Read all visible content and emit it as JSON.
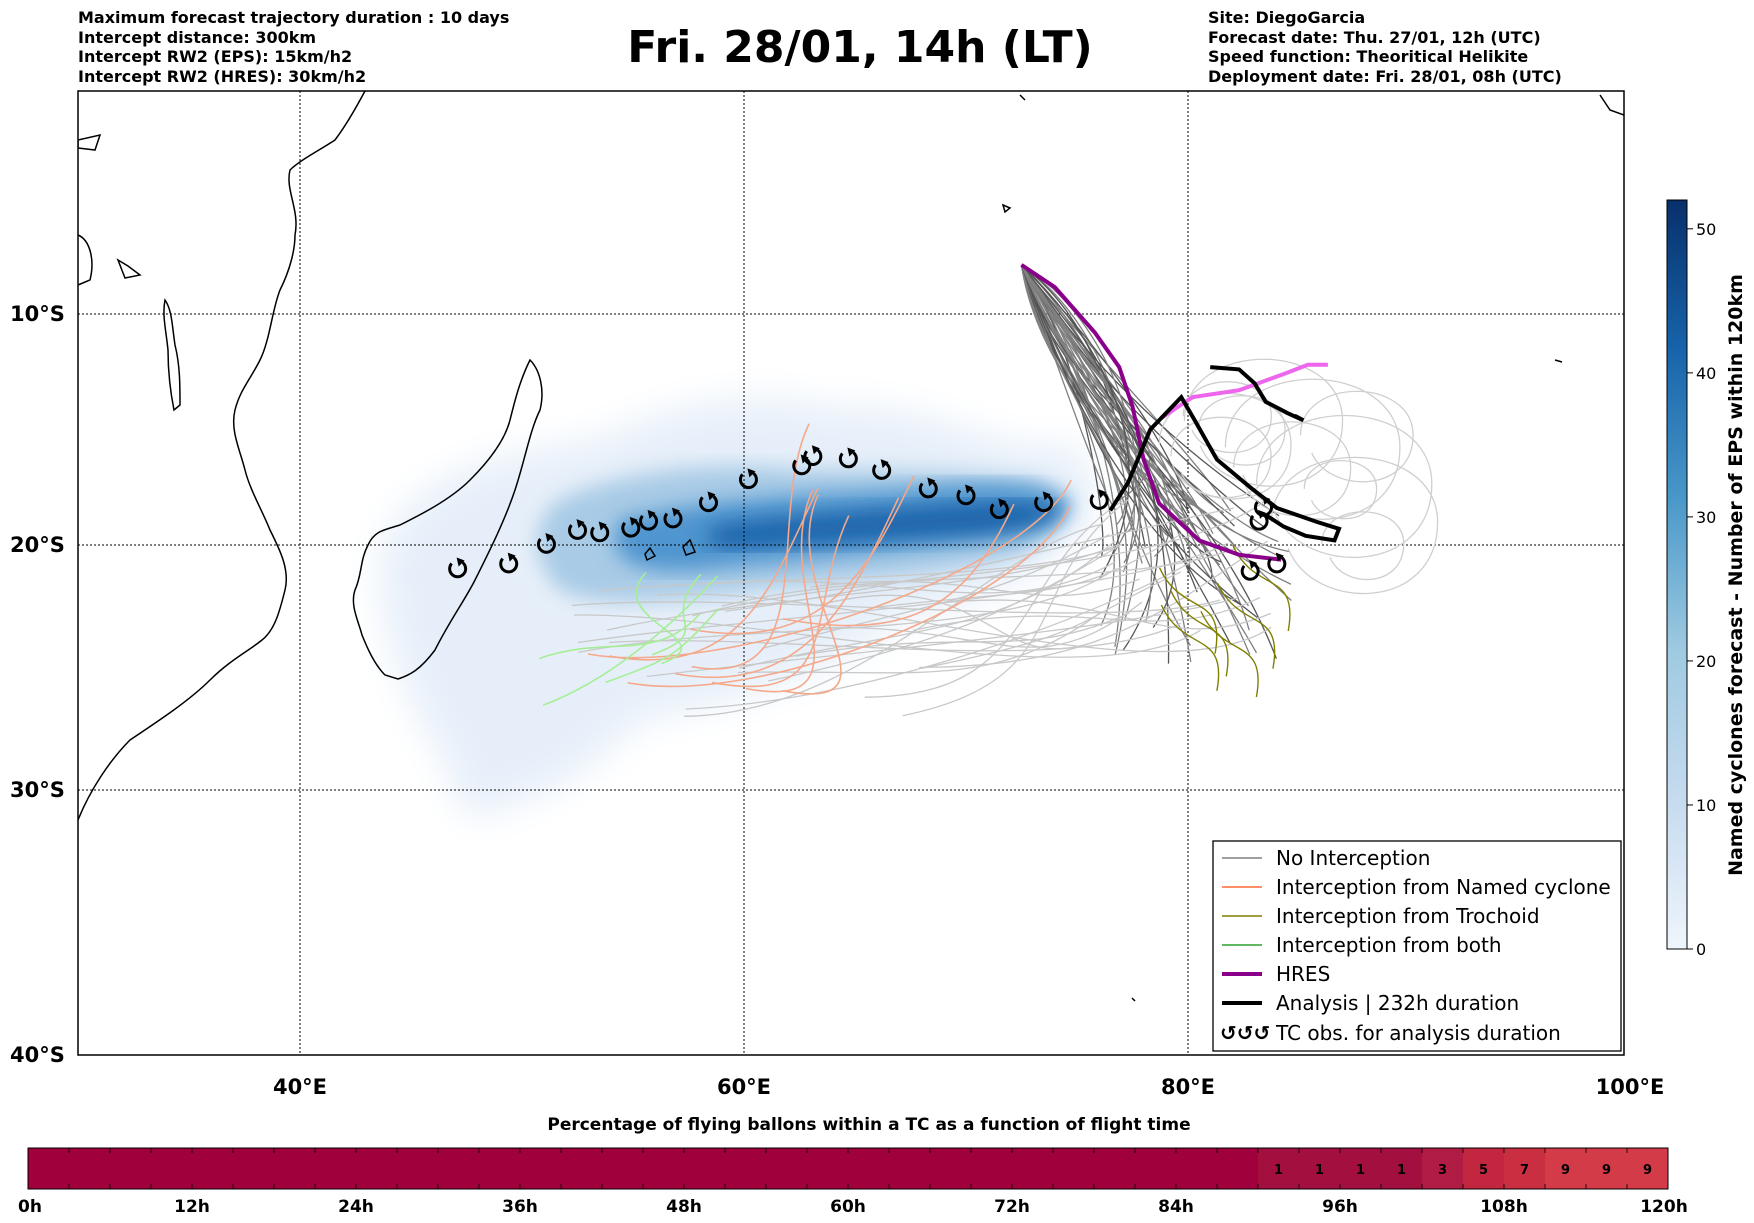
{
  "header": {
    "left": [
      "Maximum forecast trajectory duration : 10 days",
      "Intercept distance: 300km",
      "Intercept RW2 (EPS):  15km/h2",
      "Intercept RW2 (HRES): 30km/h2"
    ],
    "title": "Fri. 28/01, 14h (LT)",
    "right": [
      "Site: DiegoGarcia",
      "Forecast date: Thu. 27/01, 12h (UTC)",
      "Speed function: Theoritical Helikite",
      "Deployment date: Fri. 28/01, 08h (UTC)"
    ]
  },
  "map": {
    "lat_labels": [
      "10°S",
      "20°S",
      "30°S",
      "40°S"
    ],
    "lon_labels": [
      "40°E",
      "60°E",
      "80°E",
      "100°E"
    ],
    "colors": {
      "no_interception": "#808080",
      "named_cyclone": "#ff6a33",
      "trochoid": "#808000",
      "both": "#2ca02c",
      "hres": "#8b008b",
      "analysis": "#000000"
    },
    "legend": [
      {
        "label": "No Interception",
        "style": "line-thin-gray"
      },
      {
        "label": "Interception from Named cyclone",
        "style": "line-thin-orange"
      },
      {
        "label": "Interception from Trochoid",
        "style": "line-thin-olive"
      },
      {
        "label": "Interception from both",
        "style": "line-thin-green"
      },
      {
        "label": "HRES",
        "style": "line-thick-purple"
      },
      {
        "label": "Analysis | 232h duration",
        "style": "line-thick-black"
      },
      {
        "label": "TC obs. for analysis duration",
        "style": "cyclone-symbols",
        "symbol": "↺↺↺"
      }
    ],
    "tc_obs": [
      [
        47.1,
        -21.0
      ],
      [
        49.4,
        -20.8
      ],
      [
        51.1,
        -20.0
      ],
      [
        52.5,
        -19.4
      ],
      [
        53.5,
        -19.5
      ],
      [
        54.9,
        -19.3
      ],
      [
        55.7,
        -19.0
      ],
      [
        56.8,
        -18.9
      ],
      [
        58.4,
        -18.2
      ],
      [
        60.2,
        -17.2
      ],
      [
        62.6,
        -16.6
      ],
      [
        63.1,
        -16.2
      ],
      [
        64.7,
        -16.3
      ],
      [
        66.2,
        -16.8
      ],
      [
        68.3,
        -17.6
      ],
      [
        70.0,
        -17.9
      ],
      [
        71.5,
        -18.5
      ],
      [
        73.5,
        -18.2
      ],
      [
        76.0,
        -18.1
      ],
      [
        83.2,
        -19.0
      ],
      [
        83.4,
        -18.4
      ],
      [
        82.8,
        -21.1
      ],
      [
        84.0,
        -20.8
      ]
    ],
    "analysis_track": [
      [
        81.0,
        -12.3
      ],
      [
        82.3,
        -12.4
      ],
      [
        83.0,
        -13.0
      ],
      [
        83.5,
        -13.8
      ],
      [
        84.5,
        -14.3
      ],
      [
        85.2,
        -14.6
      ],
      [
        84.8,
        -14.4
      ]
    ],
    "analysis_track_2": [
      [
        76.5,
        -18.5
      ],
      [
        77.3,
        -17.3
      ],
      [
        78.3,
        -15.0
      ],
      [
        79.7,
        -13.6
      ],
      [
        80.3,
        -14.6
      ],
      [
        81.3,
        -16.3
      ],
      [
        82.8,
        -17.5
      ],
      [
        84.0,
        -18.4
      ],
      [
        85.8,
        -19.0
      ],
      [
        86.8,
        -19.3
      ],
      [
        86.6,
        -19.8
      ],
      [
        85.3,
        -19.6
      ],
      [
        84.3,
        -19.2
      ],
      [
        83.5,
        -18.7
      ]
    ],
    "hres_track": [
      [
        72.5,
        -7.8
      ],
      [
        74.0,
        -8.8
      ],
      [
        75.8,
        -10.8
      ],
      [
        76.9,
        -12.3
      ],
      [
        77.5,
        -14.0
      ],
      [
        78.0,
        -16.3
      ],
      [
        78.7,
        -18.2
      ],
      [
        80.5,
        -19.8
      ],
      [
        82.3,
        -20.4
      ],
      [
        84.2,
        -20.6
      ]
    ],
    "hres_track_2": [
      [
        78.8,
        -14.5
      ],
      [
        80.2,
        -13.6
      ],
      [
        82.3,
        -13.3
      ],
      [
        84.3,
        -12.6
      ],
      [
        85.4,
        -12.2
      ],
      [
        86.3,
        -12.2
      ]
    ]
  },
  "colorbar": {
    "title": "Named cyclones forecast - Number of EPS within 120km",
    "ticks": [
      "0",
      "10",
      "20",
      "30",
      "40",
      "50"
    ],
    "min": 0,
    "max": 52
  },
  "bottom_bar": {
    "title": "Percentage of flying ballons within a TC as a function of flight time",
    "ticks": [
      "0h",
      "12h",
      "24h",
      "36h",
      "48h",
      "60h",
      "72h",
      "84h",
      "96h",
      "108h",
      "120h"
    ],
    "cells": [
      "1",
      "1",
      "1",
      "1",
      "3",
      "5",
      "7",
      "9",
      "9",
      "9"
    ],
    "cell_start_hour": 90,
    "cell_width_hours": 3
  }
}
